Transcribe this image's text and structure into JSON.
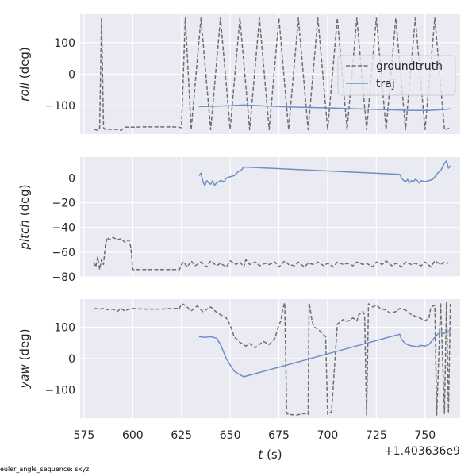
{
  "colors": {
    "panel_bg": "#eaeaf2",
    "grid": "#ffffff",
    "groundtruth": "#6e6e6e",
    "traj": "#6d8fc6",
    "text": "#262626"
  },
  "footnote": "euler_angle_sequence: sxyz",
  "chart_data": [
    {
      "type": "line",
      "ylabel_italic": "roll",
      "ylabel_rest": " (deg)",
      "ylim": [
        -190,
        190
      ],
      "yticks": [
        100,
        0,
        -100
      ],
      "ytick_labels": [
        "100",
        "0",
        "−100"
      ],
      "xlim": [
        573,
        768
      ],
      "grid": true,
      "legend": {
        "placement": "right",
        "entries": [
          "groundtruth",
          "traj"
        ]
      },
      "series": [
        {
          "name": "groundtruth",
          "style": "dashed",
          "x": [
            580,
            582,
            583,
            584,
            585,
            586,
            590,
            594,
            596,
            600,
            605,
            610,
            615,
            620,
            624,
            625,
            627,
            630,
            635,
            640,
            645,
            650,
            655,
            660,
            665,
            670,
            675,
            680,
            685,
            690,
            695,
            700,
            705,
            710,
            715,
            720,
            725,
            730,
            735,
            740,
            745,
            750,
            755,
            760,
            763
          ],
          "y": [
            -175,
            -178,
            -172,
            178,
            -170,
            -176,
            -174,
            -178,
            -168,
            -168,
            -167,
            -167,
            -167,
            -167,
            -168,
            -170,
            178,
            -176,
            178,
            -176,
            178,
            -174,
            178,
            -176,
            178,
            -176,
            178,
            -176,
            178,
            -176,
            178,
            -176,
            178,
            -176,
            178,
            -176,
            178,
            -176,
            178,
            -176,
            178,
            -176,
            178,
            -176,
            -170
          ]
        },
        {
          "name": "traj",
          "style": "solid",
          "x": [
            634,
            640,
            650,
            657,
            665,
            680,
            700,
            720,
            737,
            745,
            752,
            760,
            763
          ],
          "y": [
            -103,
            -102,
            -100,
            -98,
            -100,
            -104,
            -107,
            -111,
            -114,
            -115,
            -115,
            -112,
            -110
          ]
        }
      ]
    },
    {
      "type": "line",
      "ylabel_italic": "pitch",
      "ylabel_rest": " (deg)",
      "ylim": [
        -80,
        17
      ],
      "yticks": [
        0,
        -20,
        -40,
        -60,
        -80
      ],
      "ytick_labels": [
        "0",
        "−20",
        "−40",
        "−60",
        "−80"
      ],
      "xlim": [
        573,
        768
      ],
      "grid": true,
      "series": [
        {
          "name": "groundtruth",
          "style": "dashed",
          "x": [
            580,
            581,
            582,
            583,
            584,
            585,
            586,
            587,
            588,
            590,
            592,
            594,
            596,
            598,
            599,
            600,
            605,
            610,
            615,
            620,
            624,
            625,
            626,
            628,
            630,
            632,
            635,
            638,
            640,
            643,
            645,
            648,
            650,
            653,
            655,
            657,
            658,
            660,
            663,
            665,
            668,
            670,
            673,
            675,
            678,
            680,
            683,
            685,
            688,
            690,
            693,
            695,
            698,
            700,
            703,
            705,
            708,
            710,
            713,
            715,
            718,
            720,
            723,
            725,
            728,
            730,
            733,
            735,
            738,
            740,
            743,
            745,
            748,
            750,
            753,
            755,
            758,
            760,
            762
          ],
          "y": [
            -68,
            -72,
            -64,
            -74,
            -66,
            -70,
            -54,
            -48,
            -50,
            -48,
            -50,
            -49,
            -52,
            -50,
            -56,
            -74,
            -74,
            -74,
            -74,
            -74,
            -74,
            -70,
            -68,
            -72,
            -67,
            -71,
            -68,
            -72,
            -67,
            -71,
            -69,
            -72,
            -67,
            -70,
            -68,
            -72,
            -66,
            -70,
            -68,
            -71,
            -69,
            -70,
            -68,
            -72,
            -67,
            -70,
            -71,
            -68,
            -72,
            -69,
            -70,
            -68,
            -71,
            -69,
            -72,
            -68,
            -70,
            -69,
            -71,
            -68,
            -70,
            -69,
            -72,
            -68,
            -70,
            -67,
            -71,
            -69,
            -72,
            -68,
            -70,
            -69,
            -71,
            -68,
            -72,
            -67,
            -70,
            -68,
            -69
          ]
        },
        {
          "name": "traj",
          "style": "solid",
          "x": [
            634,
            635,
            636,
            637,
            638,
            639,
            640,
            641,
            642,
            643,
            645,
            647,
            648,
            650,
            652,
            654,
            656,
            657,
            737,
            738,
            739,
            740,
            741,
            742,
            743,
            744,
            745,
            746,
            747,
            748,
            750,
            752,
            754,
            755,
            756,
            757,
            758,
            759,
            760,
            761,
            762,
            763
          ],
          "y": [
            2,
            4,
            -3,
            -6,
            -2,
            -4,
            -5,
            -2,
            -6,
            -4,
            -2,
            -3,
            0,
            1,
            2,
            5,
            7,
            9,
            3,
            0,
            -2,
            -3,
            -1,
            -4,
            -2,
            -3,
            -1,
            -2,
            -4,
            -2,
            -3,
            -2,
            -1,
            1,
            3,
            5,
            6,
            9,
            12,
            14,
            8,
            10
          ]
        }
      ]
    },
    {
      "type": "line",
      "ylabel_italic": "yaw",
      "ylabel_rest": " (deg)",
      "ylim": [
        -190,
        190
      ],
      "yticks": [
        100,
        0,
        -100
      ],
      "ytick_labels": [
        "100",
        "0",
        "−100"
      ],
      "xlim": [
        573,
        768
      ],
      "xticks": [
        575,
        600,
        625,
        650,
        675,
        700,
        725,
        750
      ],
      "xlabel_italic": "t",
      "xlabel_rest": " (s)",
      "x_offset_label": "+1.403636e9",
      "grid": true,
      "series": [
        {
          "name": "groundtruth",
          "style": "dashed",
          "x": [
            580,
            583,
            585,
            587,
            590,
            592,
            594,
            596,
            598,
            600,
            605,
            610,
            615,
            620,
            624,
            625,
            627,
            630,
            633,
            636,
            640,
            643,
            645,
            648,
            650,
            652,
            655,
            658,
            660,
            663,
            665,
            667,
            670,
            673,
            675,
            676,
            677,
            678,
            679,
            680,
            684,
            688,
            690,
            690.5,
            691,
            692,
            693,
            695,
            697,
            699,
            700,
            702,
            705,
            708,
            710,
            713,
            715,
            716,
            718,
            719,
            720,
            721,
            723,
            725,
            727,
            730,
            732,
            735,
            737,
            740,
            743,
            745,
            748,
            750,
            752,
            753,
            755,
            756,
            758,
            760,
            761,
            762,
            763
          ],
          "y": [
            160,
            158,
            160,
            156,
            158,
            150,
            160,
            152,
            158,
            160,
            158,
            158,
            158,
            160,
            160,
            176,
            170,
            152,
            168,
            150,
            165,
            148,
            140,
            130,
            108,
            70,
            52,
            40,
            48,
            35,
            45,
            55,
            45,
            65,
            108,
            120,
            160,
            178,
            -175,
            -178,
            -180,
            -175,
            -178,
            178,
            160,
            120,
            100,
            95,
            82,
            70,
            -178,
            -170,
            110,
            125,
            118,
            130,
            120,
            140,
            150,
            140,
            -180,
            175,
            165,
            170,
            160,
            155,
            145,
            150,
            160,
            155,
            140,
            135,
            128,
            120,
            130,
            165,
            170,
            -180,
            178,
            -175,
            178,
            -170,
            175
          ]
        },
        {
          "name": "traj",
          "style": "solid",
          "x": [
            634,
            637,
            640,
            643,
            645,
            647,
            648,
            650,
            652,
            654,
            656,
            657,
            737,
            738,
            740,
            742,
            744,
            746,
            748,
            750,
            752,
            754,
            756,
            758,
            760,
            762,
            763
          ],
          "y": [
            70,
            68,
            70,
            65,
            45,
            15,
            0,
            -20,
            -40,
            -48,
            -55,
            -58,
            78,
            60,
            48,
            42,
            40,
            38,
            42,
            40,
            45,
            60,
            75,
            85,
            80,
            88,
            82
          ]
        }
      ]
    }
  ]
}
